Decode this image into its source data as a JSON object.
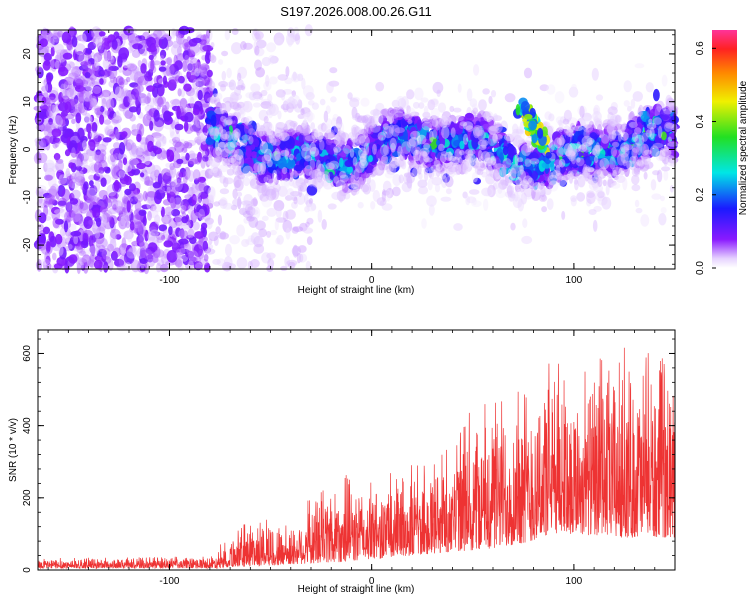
{
  "title": "S197.2026.008.00.26.G11",
  "colors": {
    "background": "#ffffff",
    "axis": "#000000",
    "snr_line": "#ee3333"
  },
  "chart_data": [
    {
      "type": "heatmap",
      "xlabel": "Height of straight line (km)",
      "ylabel": "Frequency (Hz)",
      "xlim": [
        -165,
        150
      ],
      "ylim": [
        -25,
        25
      ],
      "xticks": [
        -100,
        0,
        100
      ],
      "yticks": [
        -20,
        -10,
        0,
        10,
        20
      ],
      "xtick_labels": [
        "-100",
        "0",
        "100"
      ],
      "ytick_labels": [
        "-20",
        "-10",
        "0",
        "10",
        "20"
      ],
      "colorbar": {
        "label": "Normalized spectral amplitude",
        "range": [
          0.0,
          0.65
        ],
        "ticks": [
          0.0,
          0.2,
          0.4,
          0.6
        ],
        "tick_labels": [
          "0.0",
          "0.2",
          "0.4",
          "0.6"
        ],
        "colormap": "rainbow (purple-blue-cyan-green-yellow-orange-red-magenta)"
      },
      "features": [
        {
          "x_range": [
            -165,
            -80
          ],
          "freq_range": [
            -25,
            25
          ],
          "amplitude": 0.05,
          "description": "broadband purple noise"
        },
        {
          "x_range": [
            -80,
            150
          ],
          "freq_center": 0,
          "freq_halfwidth": 6,
          "amplitude": 0.25
        },
        {
          "x_center": 80,
          "freq_center": 5,
          "amplitude": 0.5
        }
      ]
    },
    {
      "type": "line",
      "xlabel": "Height of straight line (km)",
      "ylabel": "SNR (10 * v/v)",
      "xlim": [
        -165,
        150
      ],
      "ylim": [
        0,
        665
      ],
      "xticks": [
        -100,
        0,
        100
      ],
      "yticks": [
        0,
        200,
        400,
        600
      ],
      "xtick_labels": [
        "-100",
        "0",
        "100"
      ],
      "ytick_labels": [
        "0",
        "200",
        "400",
        "600"
      ],
      "series": [
        {
          "name": "SNR",
          "color": "#ee3333",
          "envelope_x": [
            -165,
            -120,
            -80,
            -60,
            -40,
            -20,
            0,
            20,
            40,
            60,
            80,
            90,
            100,
            120,
            150
          ],
          "envelope_peak": [
            35,
            35,
            40,
            160,
            130,
            280,
            250,
            300,
            400,
            520,
            560,
            640,
            560,
            620,
            600
          ],
          "envelope_base": [
            5,
            5,
            5,
            10,
            15,
            20,
            30,
            40,
            50,
            60,
            80,
            100,
            100,
            90,
            90
          ]
        }
      ]
    }
  ]
}
